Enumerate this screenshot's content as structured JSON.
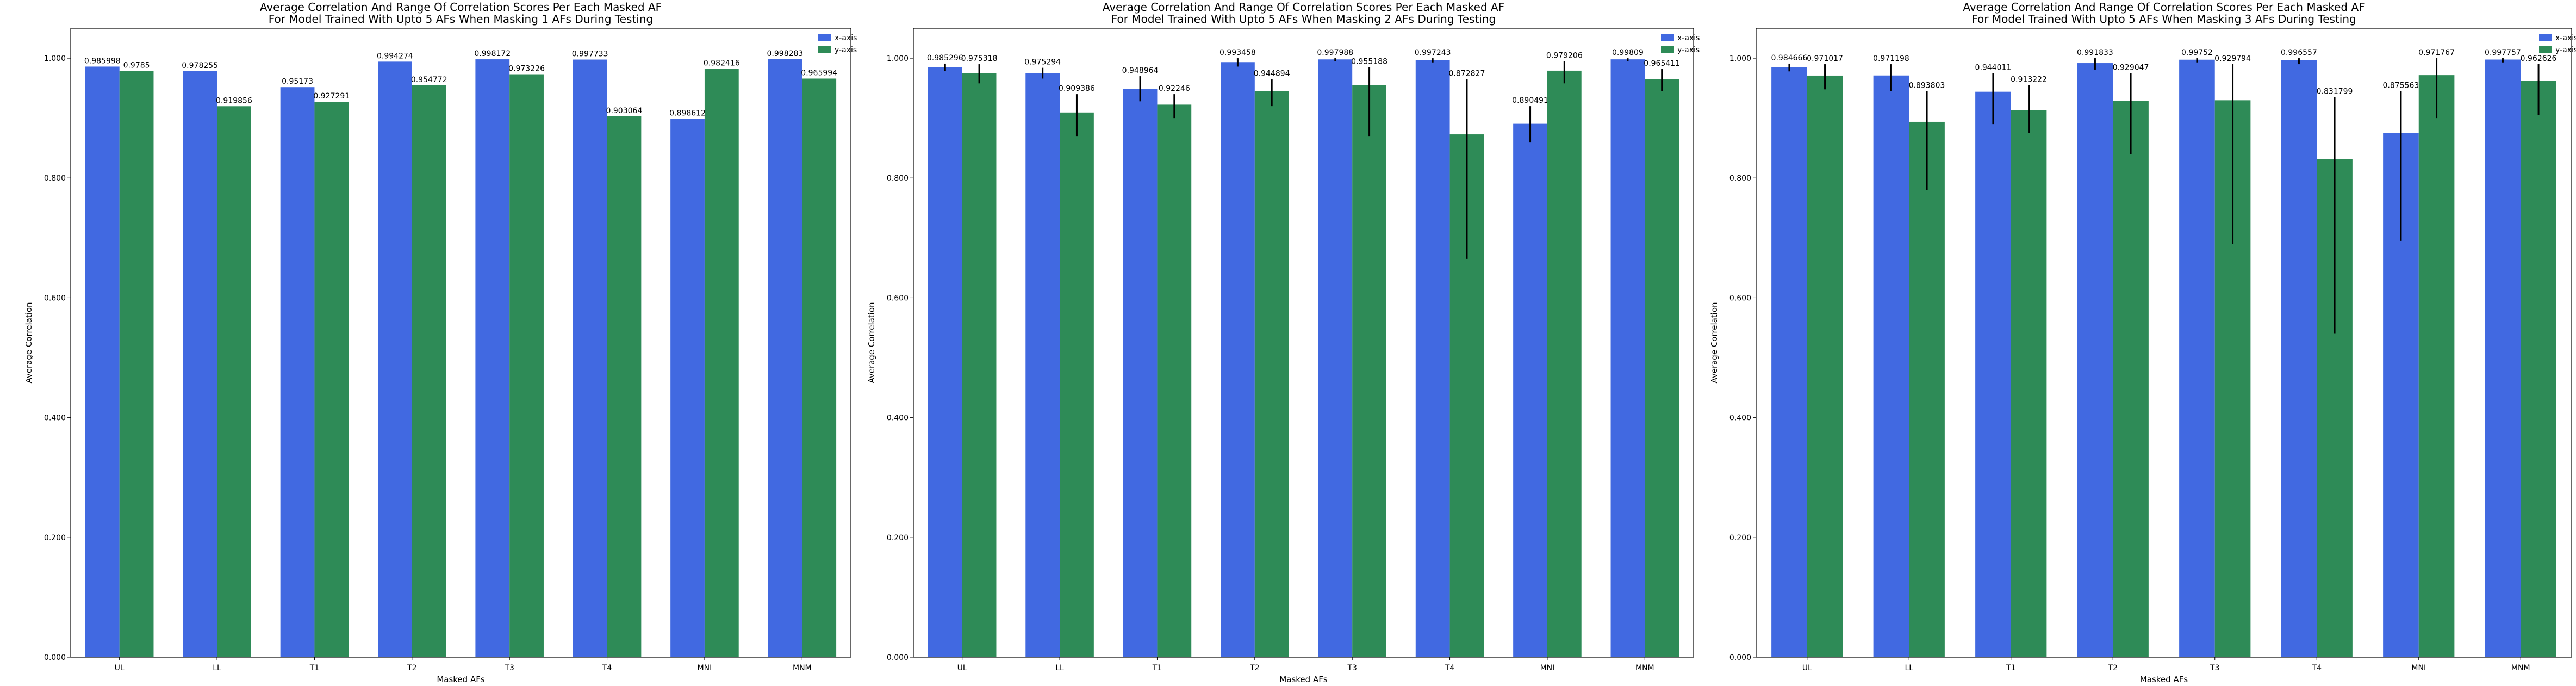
{
  "colors": {
    "x": "#4169E1",
    "y": "#2E8B57",
    "error": "#000000",
    "axis": "#000000"
  },
  "chart_data": [
    {
      "type": "bar",
      "title_lines": [
        "Average Correlation And Range Of Correlation Scores Per Each Masked AF",
        "For Model Trained With Upto 5 AFs When Masking 1 AFs During Testing"
      ],
      "xlabel": "Masked AFs",
      "ylabel": "Average Correlation",
      "categories": [
        "UL",
        "LL",
        "T1",
        "T2",
        "T3",
        "T4",
        "MNI",
        "MNM"
      ],
      "ylim": [
        0,
        1.05
      ],
      "yticks": [
        "0.000",
        "0.200",
        "0.400",
        "0.600",
        "0.800",
        "1.000"
      ],
      "legend": "top-right",
      "series": [
        {
          "name": "x-axis",
          "values": [
            0.985998,
            0.978255,
            0.95173,
            0.994274,
            0.998172,
            0.997733,
            0.898612,
            0.998283
          ],
          "labels": [
            "0.985998",
            "0.978255",
            "0.95173",
            "0.994274",
            "0.998172",
            "0.997733",
            "0.898612",
            "0.998283"
          ],
          "err": [
            null,
            null,
            null,
            null,
            null,
            null,
            null,
            null
          ]
        },
        {
          "name": "y-axis",
          "values": [
            0.9785,
            0.919856,
            0.927291,
            0.954772,
            0.973226,
            0.903064,
            0.982416,
            0.965994
          ],
          "labels": [
            "0.9785",
            "0.919856",
            "0.927291",
            "0.954772",
            "0.973226",
            "0.903064",
            "0.982416",
            "0.965994"
          ],
          "err": [
            null,
            null,
            null,
            null,
            null,
            null,
            null,
            null
          ]
        }
      ]
    },
    {
      "type": "bar",
      "title_lines": [
        "Average Correlation And Range Of Correlation Scores Per Each Masked AF",
        "For Model Trained With Upto 5 AFs When Masking 2 AFs During Testing"
      ],
      "xlabel": "Masked AFs",
      "ylabel": "Average Correlation",
      "categories": [
        "UL",
        "LL",
        "T1",
        "T2",
        "T3",
        "T4",
        "MNI",
        "MNM"
      ],
      "ylim": [
        0,
        1.05
      ],
      "yticks": [
        "0.000",
        "0.200",
        "0.400",
        "0.600",
        "0.800",
        "1.000"
      ],
      "legend": "top-right",
      "series": [
        {
          "name": "x-axis",
          "values": [
            0.985296,
            0.975294,
            0.948964,
            0.993458,
            0.997988,
            0.997243,
            0.890491,
            0.99809
          ],
          "labels": [
            "0.985296",
            "0.975294",
            "0.948964",
            "0.993458",
            "0.997988",
            "0.997243",
            "0.890491",
            "0.99809"
          ],
          "err": [
            [
              0.979,
              0.991
            ],
            [
              0.966,
              0.984
            ],
            [
              0.928,
              0.97
            ],
            [
              0.986,
              1.0
            ],
            [
              0.995,
              1.0
            ],
            [
              0.993,
              1.0
            ],
            [
              0.86,
              0.92
            ],
            [
              0.995,
              1.0
            ]
          ]
        },
        {
          "name": "y-axis",
          "values": [
            0.975318,
            0.909386,
            0.92246,
            0.944894,
            0.955188,
            0.872827,
            0.979206,
            0.965411
          ],
          "labels": [
            "0.975318",
            "0.909386",
            "0.92246",
            "0.944894",
            "0.955188",
            "0.872827",
            "0.979206",
            "0.965411"
          ],
          "err": [
            [
              0.958,
              0.99
            ],
            [
              0.87,
              0.94
            ],
            [
              0.9,
              0.94
            ],
            [
              0.92,
              0.965
            ],
            [
              0.87,
              0.985
            ],
            [
              0.665,
              0.965
            ],
            [
              0.958,
              0.995
            ],
            [
              0.945,
              0.982
            ]
          ]
        }
      ]
    },
    {
      "type": "bar",
      "title_lines": [
        "Average Correlation And Range Of Correlation Scores Per Each Masked AF",
        "For Model Trained With Upto 5 AFs When Masking 3 AFs During Testing"
      ],
      "xlabel": "Masked AFs",
      "ylabel": "Average Correlation",
      "categories": [
        "UL",
        "LL",
        "T1",
        "T2",
        "T3",
        "T4",
        "MNI",
        "MNM"
      ],
      "ylim": [
        0,
        1.05
      ],
      "yticks": [
        "0.000",
        "0.200",
        "0.400",
        "0.600",
        "0.800",
        "1.000"
      ],
      "legend": "top-right",
      "series": [
        {
          "name": "x-axis",
          "values": [
            0.984666,
            0.971198,
            0.944011,
            0.991833,
            0.99752,
            0.996557,
            0.875563,
            0.997757
          ],
          "labels": [
            "0.984666",
            "0.971198",
            "0.944011",
            "0.991833",
            "0.99752",
            "0.996557",
            "0.875563",
            "0.997757"
          ],
          "err": [
            [
              0.978,
              0.991
            ],
            [
              0.945,
              0.99
            ],
            [
              0.89,
              0.975
            ],
            [
              0.981,
              1.0
            ],
            [
              0.993,
              1.0
            ],
            [
              0.99,
              1.0
            ],
            [
              0.695,
              0.945
            ],
            [
              0.993,
              1.0
            ]
          ]
        },
        {
          "name": "y-axis",
          "values": [
            0.971017,
            0.893803,
            0.913222,
            0.929047,
            0.929794,
            0.831799,
            0.971767,
            0.962626
          ],
          "labels": [
            "0.971017",
            "0.893803",
            "0.913222",
            "0.929047",
            "0.929794",
            "0.831799",
            "0.971767",
            "0.962626"
          ],
          "err": [
            [
              0.948,
              0.99
            ],
            [
              0.78,
              0.945
            ],
            [
              0.875,
              0.955
            ],
            [
              0.84,
              0.975
            ],
            [
              0.69,
              0.99
            ],
            [
              0.54,
              0.935
            ],
            [
              0.9,
              1.0
            ],
            [
              0.905,
              0.99
            ]
          ]
        }
      ]
    }
  ]
}
